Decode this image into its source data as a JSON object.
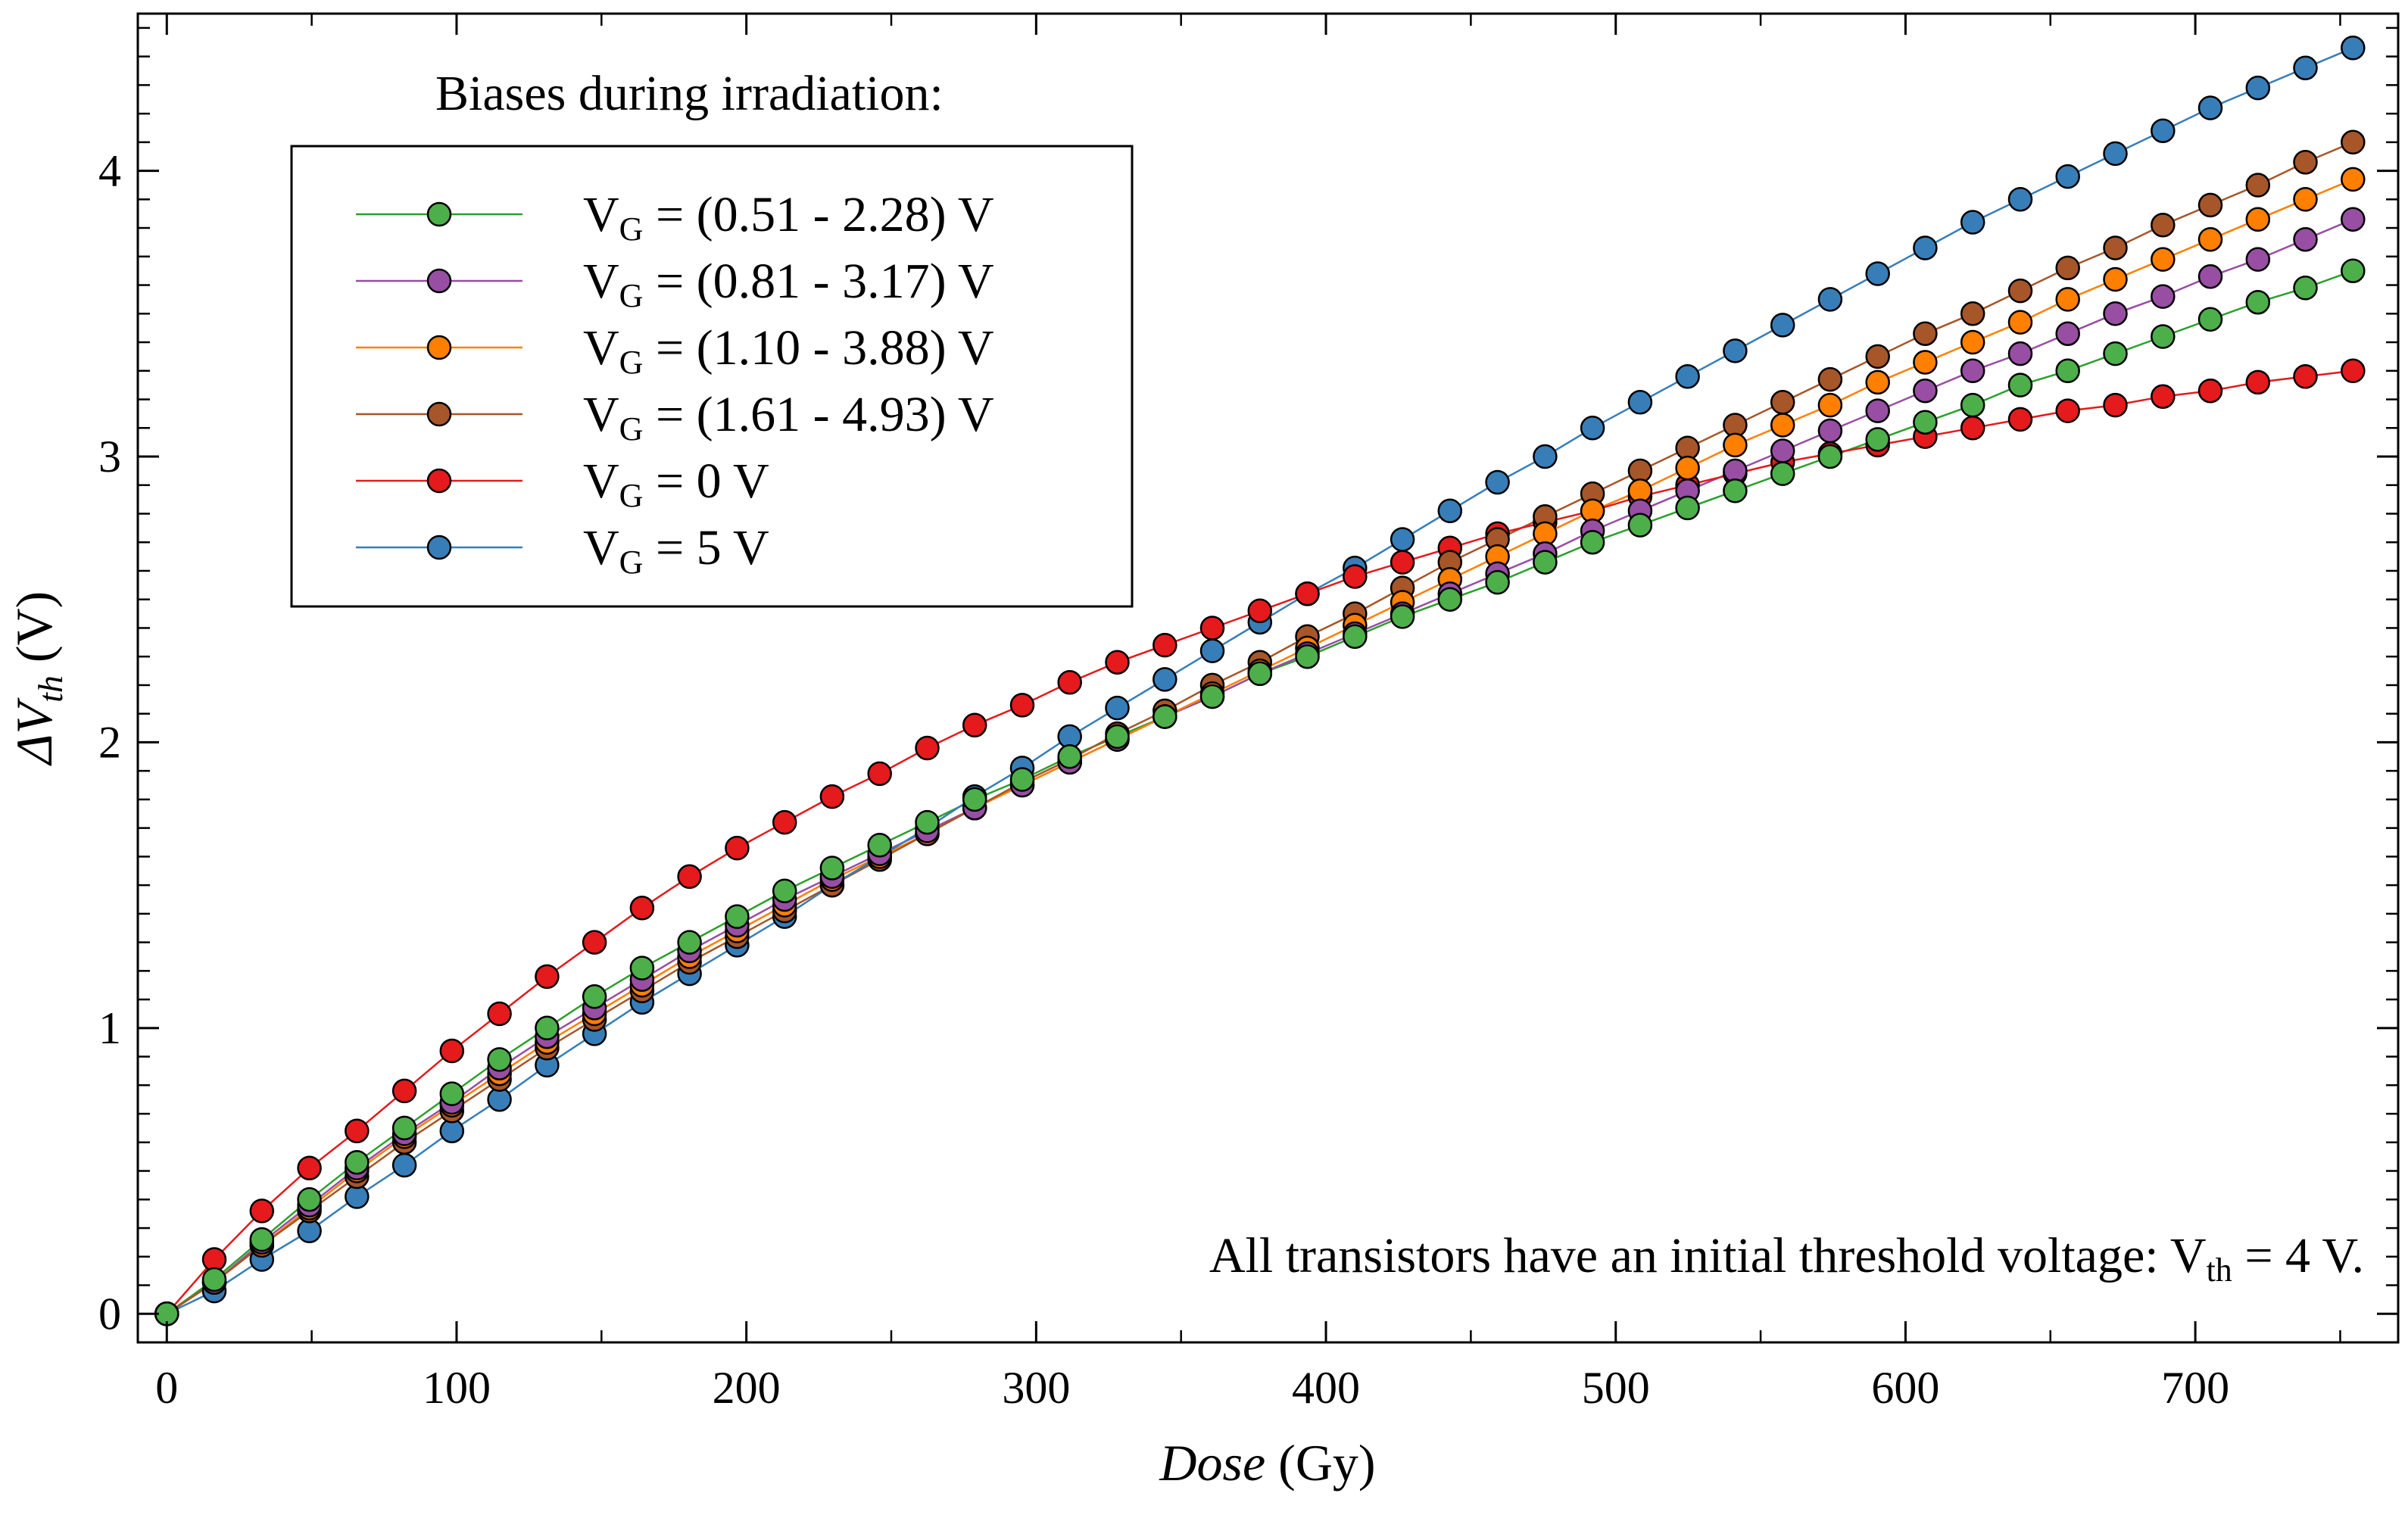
{
  "chart_data": {
    "type": "line",
    "xlabel_italic": "Dose",
    "xlabel_unit": " (Gy)",
    "ylabel_prefix": "ΔV",
    "ylabel_sub": "th",
    "ylabel_unit": " (V)",
    "xlim": [
      -10,
      770
    ],
    "ylim": [
      -0.1,
      4.55
    ],
    "xticks": [
      0,
      100,
      200,
      300,
      400,
      500,
      600,
      700
    ],
    "yticks": [
      0,
      1,
      2,
      3,
      4
    ],
    "legend_title": "Biases during irradiation:",
    "annotation": {
      "text": "All transistors have an initial threshold voltage: V",
      "sub": "th",
      "tail": " = 4 V."
    },
    "x": [
      0,
      16.4,
      32.8,
      49.2,
      65.6,
      82,
      98.4,
      114.8,
      131.2,
      147.6,
      164,
      180.4,
      196.8,
      213.2,
      229.6,
      246,
      262.4,
      278.8,
      295.2,
      311.6,
      328,
      344.4,
      360.8,
      377.2,
      393.6,
      410,
      426.4,
      442.8,
      459.2,
      475.6,
      492,
      508.4,
      524.8,
      541.2,
      557.6,
      574,
      590.4,
      606.8,
      623.2,
      639.6,
      656,
      672.4,
      688.8,
      705.2,
      721.6,
      738,
      754.4
    ],
    "series": [
      {
        "color": "#2ca02c",
        "fill": "#4daf4a",
        "label_main": "V",
        "label_sub": "G",
        "label_tail": " = (0.51 - 2.28) V",
        "values": [
          0,
          0.12,
          0.26,
          0.4,
          0.53,
          0.65,
          0.77,
          0.89,
          1.0,
          1.11,
          1.21,
          1.3,
          1.39,
          1.48,
          1.56,
          1.64,
          1.72,
          1.8,
          1.87,
          1.95,
          2.02,
          2.09,
          2.16,
          2.24,
          2.3,
          2.37,
          2.44,
          2.5,
          2.56,
          2.63,
          2.7,
          2.76,
          2.82,
          2.88,
          2.94,
          3.0,
          3.06,
          3.12,
          3.18,
          3.25,
          3.3,
          3.36,
          3.42,
          3.48,
          3.54,
          3.59,
          3.65
        ]
      },
      {
        "color": "#984ea3",
        "fill": "#984ea3",
        "label_main": "V",
        "label_sub": "G",
        "label_tail": " = (0.81 - 3.17) V",
        "values": [
          0,
          0.11,
          0.25,
          0.38,
          0.51,
          0.63,
          0.74,
          0.86,
          0.97,
          1.07,
          1.17,
          1.27,
          1.36,
          1.45,
          1.53,
          1.61,
          1.69,
          1.77,
          1.85,
          1.93,
          2.01,
          2.09,
          2.16,
          2.24,
          2.31,
          2.38,
          2.45,
          2.52,
          2.59,
          2.66,
          2.74,
          2.81,
          2.88,
          2.95,
          3.02,
          3.09,
          3.16,
          3.23,
          3.3,
          3.36,
          3.43,
          3.5,
          3.56,
          3.63,
          3.69,
          3.76,
          3.83
        ]
      },
      {
        "color": "#ff7f00",
        "fill": "#ff7f00",
        "label_main": "V",
        "label_sub": "G",
        "label_tail": " = (1.10 - 3.88) V",
        "values": [
          0,
          0.11,
          0.24,
          0.37,
          0.5,
          0.62,
          0.73,
          0.84,
          0.95,
          1.05,
          1.15,
          1.25,
          1.34,
          1.43,
          1.52,
          1.6,
          1.68,
          1.77,
          1.85,
          1.93,
          2.01,
          2.09,
          2.17,
          2.25,
          2.33,
          2.41,
          2.49,
          2.57,
          2.65,
          2.73,
          2.81,
          2.88,
          2.96,
          3.04,
          3.11,
          3.18,
          3.26,
          3.33,
          3.4,
          3.47,
          3.55,
          3.62,
          3.69,
          3.76,
          3.83,
          3.9,
          3.97
        ]
      },
      {
        "color": "#a65628",
        "fill": "#a65628",
        "label_main": "V",
        "label_sub": "G",
        "label_tail": " = (1.61 - 4.93) V",
        "values": [
          0,
          0.11,
          0.24,
          0.36,
          0.48,
          0.6,
          0.71,
          0.82,
          0.93,
          1.03,
          1.13,
          1.23,
          1.32,
          1.41,
          1.5,
          1.59,
          1.68,
          1.77,
          1.86,
          1.94,
          2.03,
          2.11,
          2.2,
          2.28,
          2.37,
          2.45,
          2.54,
          2.63,
          2.71,
          2.79,
          2.87,
          2.95,
          3.03,
          3.11,
          3.19,
          3.27,
          3.35,
          3.43,
          3.5,
          3.58,
          3.66,
          3.73,
          3.81,
          3.88,
          3.95,
          4.03,
          4.1
        ]
      },
      {
        "color": "#e41a1c",
        "fill": "#e41a1c",
        "label_main": "V",
        "label_sub": "G",
        "label_tail": " = 0 V",
        "values": [
          0,
          0.19,
          0.36,
          0.51,
          0.64,
          0.78,
          0.92,
          1.05,
          1.18,
          1.3,
          1.42,
          1.53,
          1.63,
          1.72,
          1.81,
          1.89,
          1.98,
          2.06,
          2.13,
          2.21,
          2.28,
          2.34,
          2.4,
          2.46,
          2.52,
          2.58,
          2.63,
          2.68,
          2.73,
          2.77,
          2.81,
          2.86,
          2.9,
          2.94,
          2.98,
          3.01,
          3.04,
          3.07,
          3.1,
          3.13,
          3.16,
          3.18,
          3.21,
          3.23,
          3.26,
          3.28,
          3.3
        ]
      },
      {
        "color": "#377eb8",
        "fill": "#377eb8",
        "label_main": "V",
        "label_sub": "G",
        "label_tail": " = 5 V",
        "values": [
          0,
          0.08,
          0.19,
          0.29,
          0.41,
          0.52,
          0.64,
          0.75,
          0.87,
          0.98,
          1.09,
          1.19,
          1.29,
          1.39,
          1.5,
          1.6,
          1.7,
          1.81,
          1.91,
          2.02,
          2.12,
          2.22,
          2.32,
          2.42,
          2.52,
          2.61,
          2.71,
          2.81,
          2.91,
          3.0,
          3.1,
          3.19,
          3.28,
          3.37,
          3.46,
          3.55,
          3.64,
          3.73,
          3.82,
          3.9,
          3.98,
          4.06,
          4.14,
          4.22,
          4.29,
          4.36,
          4.43
        ]
      }
    ]
  }
}
